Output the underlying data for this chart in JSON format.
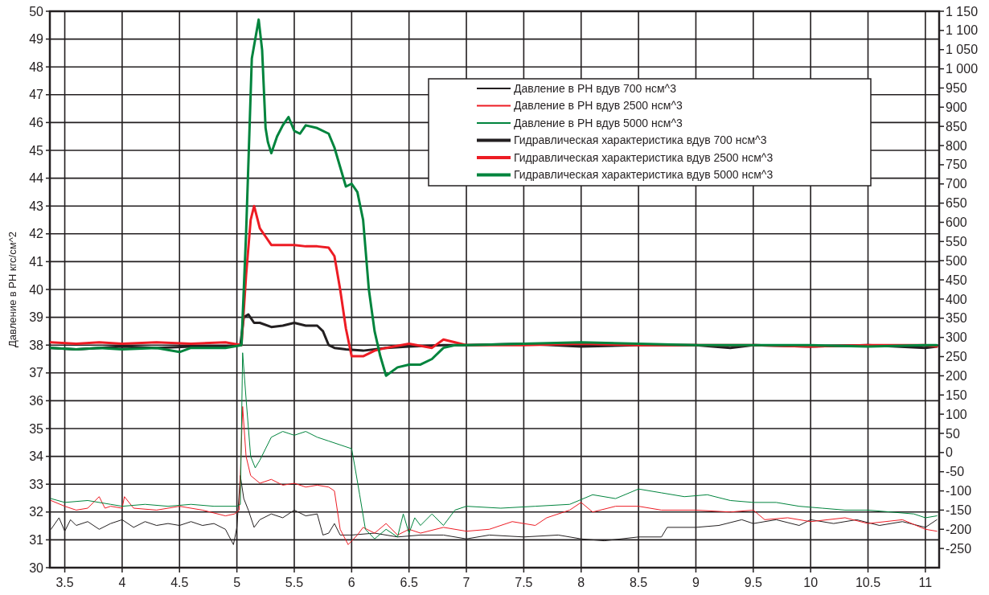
{
  "chart_data": {
    "type": "line",
    "ylabel": "Давление в РН кгс/см^2",
    "xlim": [
      3.37,
      11.12
    ],
    "xticks": [
      3.5,
      4,
      4.5,
      5,
      5.5,
      6,
      6.5,
      7,
      7.5,
      8,
      8.5,
      9,
      9.5,
      10,
      10.5,
      11
    ],
    "ylim": [
      30,
      50
    ],
    "yticks": [
      30,
      31,
      32,
      33,
      34,
      35,
      36,
      37,
      38,
      39,
      40,
      41,
      42,
      43,
      44,
      45,
      46,
      47,
      48,
      49,
      50
    ],
    "y2lim": [
      -300,
      1150
    ],
    "y2ticks": [
      -250,
      -200,
      -150,
      -100,
      -50,
      0,
      50,
      100,
      150,
      200,
      250,
      300,
      350,
      400,
      450,
      500,
      550,
      600,
      650,
      700,
      750,
      800,
      850,
      900,
      950,
      {
        "value": 1000,
        "label": "1 000"
      },
      {
        "value": 1050,
        "label": "1 050"
      },
      {
        "value": 1100,
        "label": "1 100"
      },
      {
        "value": 1150,
        "label": "1 150"
      }
    ],
    "grid": true,
    "legend": "top right",
    "line_style": "solid",
    "marker": "none",
    "series": [
      {
        "name": "Давление в РН вдув 700 нсм^3",
        "color": "#231f20",
        "axis": "y2",
        "x": [
          3.38,
          3.45,
          3.5,
          3.55,
          3.6,
          3.7,
          3.8,
          3.9,
          4.0,
          4.1,
          4.2,
          4.3,
          4.4,
          4.5,
          4.6,
          4.7,
          4.8,
          4.9,
          4.97,
          5.0,
          5.03,
          5.06,
          5.1,
          5.15,
          5.2,
          5.3,
          5.4,
          5.5,
          5.6,
          5.7,
          5.75,
          5.8,
          5.85,
          5.9,
          6.0,
          6.2,
          6.4,
          6.6,
          6.8,
          7.0,
          7.2,
          7.5,
          7.8,
          8.0,
          8.2,
          8.5,
          8.7,
          8.75,
          9.0,
          9.2,
          9.4,
          9.5,
          9.7,
          9.9,
          10.0,
          10.2,
          10.4,
          10.6,
          10.8,
          11.0,
          11.1
        ],
        "values": [
          -200,
          -170,
          -205,
          -175,
          -190,
          -180,
          -200,
          -185,
          -175,
          -195,
          -180,
          -190,
          -185,
          -190,
          -180,
          -190,
          -185,
          -200,
          -240,
          -195,
          -60,
          -120,
          -150,
          -195,
          -175,
          -160,
          -170,
          -150,
          -165,
          -160,
          -215,
          -210,
          -185,
          -215,
          -215,
          -210,
          -220,
          -215,
          -215,
          -225,
          -215,
          -220,
          -215,
          -225,
          -230,
          -220,
          -220,
          -195,
          -195,
          -190,
          -175,
          -185,
          -175,
          -190,
          -175,
          -185,
          -175,
          -190,
          -180,
          -195,
          -175
        ]
      },
      {
        "name": "Давление в РН вдув 2500 нсм^3",
        "color": "#ed1c24",
        "axis": "y2",
        "x": [
          3.38,
          3.5,
          3.6,
          3.7,
          3.8,
          3.85,
          3.9,
          4.0,
          4.02,
          4.1,
          4.3,
          4.5,
          4.7,
          4.9,
          4.98,
          5.02,
          5.05,
          5.08,
          5.12,
          5.2,
          5.3,
          5.4,
          5.5,
          5.6,
          5.7,
          5.8,
          5.85,
          5.9,
          5.97,
          6.05,
          6.1,
          6.2,
          6.3,
          6.4,
          6.5,
          6.6,
          6.8,
          7.0,
          7.2,
          7.4,
          7.6,
          7.7,
          7.9,
          8.0,
          8.1,
          8.3,
          8.5,
          8.7,
          9.0,
          9.3,
          9.5,
          9.6,
          9.8,
          10.0,
          10.3,
          10.5,
          10.8,
          11.0,
          11.1
        ],
        "values": [
          -125,
          -140,
          -150,
          -145,
          -115,
          -145,
          -140,
          -145,
          -115,
          -145,
          -150,
          -140,
          -150,
          -165,
          -160,
          -150,
          120,
          -10,
          -60,
          -80,
          -70,
          -85,
          -80,
          -90,
          -85,
          -90,
          -100,
          -200,
          -240,
          -215,
          -195,
          -210,
          -185,
          -215,
          -200,
          -210,
          -195,
          -205,
          -200,
          -180,
          -190,
          -170,
          -150,
          -130,
          -155,
          -140,
          -140,
          -150,
          -150,
          -155,
          -150,
          -175,
          -170,
          -180,
          -170,
          -185,
          -175,
          -200,
          -205
        ]
      },
      {
        "name": "Давление в РН вдув 5000 нсм^3",
        "color": "#00843d",
        "axis": "y2",
        "x": [
          3.38,
          3.5,
          3.7,
          3.9,
          4.0,
          4.2,
          4.4,
          4.6,
          4.8,
          5.0,
          5.03,
          5.05,
          5.08,
          5.12,
          5.16,
          5.2,
          5.25,
          5.3,
          5.4,
          5.5,
          5.6,
          5.7,
          5.8,
          5.9,
          6.0,
          6.03,
          6.07,
          6.12,
          6.2,
          6.3,
          6.4,
          6.45,
          6.5,
          6.55,
          6.6,
          6.7,
          6.8,
          6.9,
          7.0,
          7.3,
          7.6,
          7.9,
          8.1,
          8.3,
          8.5,
          8.7,
          8.9,
          9.1,
          9.3,
          9.5,
          9.7,
          9.9,
          10.1,
          10.3,
          10.5,
          10.7,
          10.9,
          11.0,
          11.1
        ],
        "values": [
          -120,
          -130,
          -125,
          -135,
          -140,
          -135,
          -140,
          -135,
          -140,
          -140,
          -135,
          260,
          140,
          -10,
          -40,
          -20,
          10,
          40,
          55,
          45,
          55,
          40,
          30,
          20,
          10,
          -40,
          -110,
          -200,
          -225,
          -200,
          -220,
          -160,
          -210,
          -170,
          -190,
          -160,
          -190,
          -150,
          -140,
          -145,
          -140,
          -135,
          -110,
          -120,
          -95,
          -105,
          -115,
          -110,
          -125,
          -130,
          -130,
          -140,
          -145,
          -150,
          -150,
          -155,
          -160,
          -170,
          -165
        ]
      },
      {
        "name": "Гидравлическая характеристика вдув 700 нсм^3",
        "color": "#231f20",
        "axis": "y",
        "x": [
          3.38,
          3.6,
          3.8,
          4.0,
          4.3,
          4.6,
          4.9,
          5.03,
          5.06,
          5.1,
          5.15,
          5.2,
          5.3,
          5.4,
          5.5,
          5.6,
          5.7,
          5.75,
          5.8,
          5.85,
          5.95,
          6.1,
          6.3,
          6.5,
          6.8,
          7.0,
          7.5,
          8.0,
          8.5,
          9.0,
          9.3,
          9.5,
          10.0,
          10.5,
          11.0,
          11.1
        ],
        "values": [
          37.9,
          37.85,
          37.9,
          37.95,
          37.9,
          37.95,
          37.95,
          38.0,
          39.0,
          39.1,
          38.8,
          38.8,
          38.65,
          38.7,
          38.8,
          38.7,
          38.7,
          38.5,
          38.0,
          37.9,
          37.85,
          37.8,
          37.9,
          37.95,
          38.0,
          38.0,
          38.05,
          37.95,
          38.0,
          38.0,
          37.9,
          38.0,
          37.95,
          38.0,
          37.9,
          37.95
        ]
      },
      {
        "name": "Гидравлическая характеристика вдув 2500 нсм^3",
        "color": "#ed1c24",
        "axis": "y",
        "x": [
          3.38,
          3.6,
          3.8,
          4.0,
          4.3,
          4.6,
          4.9,
          5.04,
          5.08,
          5.12,
          5.15,
          5.2,
          5.25,
          5.3,
          5.4,
          5.5,
          5.6,
          5.7,
          5.8,
          5.85,
          5.9,
          5.95,
          6.0,
          6.1,
          6.2,
          6.3,
          6.5,
          6.7,
          6.8,
          7.0,
          7.5,
          8.0,
          8.5,
          9.0,
          9.5,
          10.0,
          10.5,
          11.0,
          11.1
        ],
        "values": [
          38.1,
          38.05,
          38.1,
          38.05,
          38.1,
          38.05,
          38.1,
          38.0,
          40.5,
          42.5,
          43.0,
          42.2,
          41.9,
          41.6,
          41.6,
          41.6,
          41.55,
          41.55,
          41.5,
          41.2,
          40.0,
          38.6,
          37.6,
          37.6,
          37.8,
          37.9,
          38.05,
          37.9,
          38.2,
          38.0,
          38.0,
          38.05,
          38.0,
          38.0,
          38.0,
          37.95,
          38.0,
          38.0,
          37.95
        ]
      },
      {
        "name": "Гидравлическая характеристика вдув 5000 нсм^3",
        "color": "#00843d",
        "axis": "y",
        "x": [
          3.38,
          3.6,
          3.8,
          4.0,
          4.3,
          4.5,
          4.6,
          4.9,
          5.04,
          5.08,
          5.1,
          5.13,
          5.16,
          5.19,
          5.22,
          5.25,
          5.27,
          5.3,
          5.35,
          5.4,
          5.45,
          5.5,
          5.55,
          5.6,
          5.7,
          5.8,
          5.85,
          5.9,
          5.95,
          6.0,
          6.05,
          6.1,
          6.15,
          6.2,
          6.25,
          6.3,
          6.4,
          6.5,
          6.6,
          6.7,
          6.8,
          6.9,
          7.0,
          7.5,
          8.0,
          8.5,
          9.0,
          9.5,
          10.0,
          10.5,
          11.0,
          11.1
        ],
        "values": [
          37.9,
          37.85,
          37.9,
          37.85,
          37.9,
          37.75,
          37.9,
          37.9,
          38.0,
          42.0,
          44.5,
          48.3,
          49.0,
          49.7,
          48.6,
          45.8,
          45.3,
          44.9,
          45.5,
          45.9,
          46.2,
          45.7,
          45.6,
          45.9,
          45.8,
          45.6,
          45.1,
          44.4,
          43.7,
          43.8,
          43.5,
          42.5,
          40.0,
          38.5,
          37.6,
          36.9,
          37.2,
          37.3,
          37.3,
          37.5,
          37.9,
          38.0,
          38.0,
          38.05,
          38.1,
          38.05,
          38.0,
          38.0,
          38.0,
          37.95,
          38.0,
          38.0
        ]
      }
    ]
  }
}
